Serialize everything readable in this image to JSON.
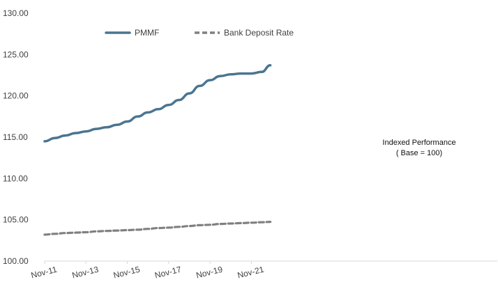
{
  "chart_data": {
    "type": "line",
    "title": "",
    "xlabel": "",
    "ylabel": "",
    "ylim": [
      100,
      130
    ],
    "yticks": [
      "100.00",
      "105.00",
      "110.00",
      "115.00",
      "120.00",
      "125.00",
      "130.00"
    ],
    "xticks": [
      "Nov-11",
      "Nov-13",
      "Nov-15",
      "Nov-17",
      "Nov-19",
      "Nov-21"
    ],
    "x": [
      "2011-11",
      "2012-05",
      "2012-11",
      "2013-05",
      "2013-11",
      "2014-05",
      "2014-11",
      "2015-05",
      "2015-11",
      "2016-05",
      "2016-11",
      "2017-05",
      "2017-11",
      "2018-05",
      "2018-11",
      "2019-05",
      "2019-11",
      "2020-05",
      "2020-11",
      "2021-05",
      "2021-11",
      "2022-05",
      "2022-10"
    ],
    "series": [
      {
        "name": "PMMF",
        "color": "#4a7590",
        "style": "solid",
        "values": [
          114.5,
          114.9,
          115.2,
          115.5,
          115.7,
          116.0,
          116.2,
          116.5,
          116.9,
          117.5,
          118.0,
          118.4,
          118.9,
          119.5,
          120.3,
          121.2,
          121.9,
          122.4,
          122.6,
          122.7,
          122.7,
          122.9,
          123.7
        ]
      },
      {
        "name": "Bank Deposit Rate",
        "color": "#808080",
        "style": "dashed",
        "values": [
          103.2,
          103.3,
          103.4,
          103.45,
          103.5,
          103.6,
          103.65,
          103.7,
          103.75,
          103.8,
          103.9,
          104.0,
          104.05,
          104.15,
          104.25,
          104.35,
          104.4,
          104.5,
          104.55,
          104.6,
          104.65,
          104.7,
          104.75
        ]
      }
    ],
    "annotation": {
      "line1": "Indexed Performance",
      "line2": "( Base = 100)"
    },
    "legend_position": "top-left",
    "grid": false
  }
}
